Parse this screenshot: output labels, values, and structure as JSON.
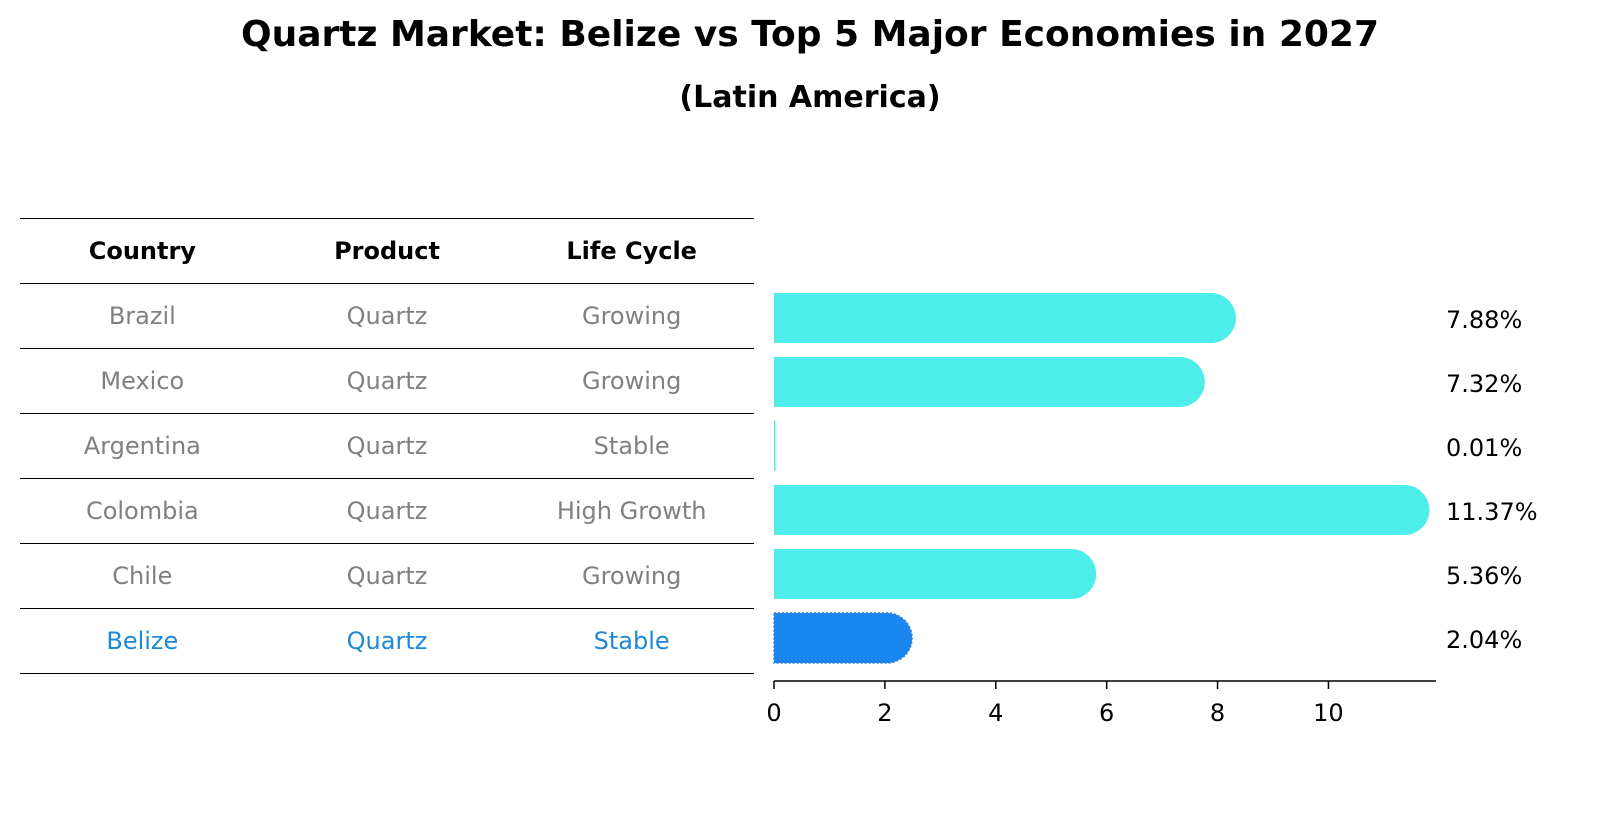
{
  "title": "Quartz Market: Belize vs Top 5 Major Economies in 2027",
  "subtitle": "(Latin America)",
  "table": {
    "headers": [
      "Country",
      "Product",
      "Life Cycle"
    ],
    "rows": [
      {
        "country": "Brazil",
        "product": "Quartz",
        "life_cycle": "Growing"
      },
      {
        "country": "Mexico",
        "product": "Quartz",
        "life_cycle": "Growing"
      },
      {
        "country": "Argentina",
        "product": "Quartz",
        "life_cycle": "Stable"
      },
      {
        "country": "Colombia",
        "product": "Quartz",
        "life_cycle": "High Growth"
      },
      {
        "country": "Chile",
        "product": "Quartz",
        "life_cycle": "Growing"
      },
      {
        "country": "Belize",
        "product": "Quartz",
        "life_cycle": "Stable"
      }
    ]
  },
  "colors": {
    "bar": "#4deeea",
    "highlight": "#1a86f0",
    "highlight_text": "#1e88d8",
    "muted_text": "#808080"
  },
  "chart_data": {
    "type": "bar",
    "orientation": "horizontal",
    "categories": [
      "Brazil",
      "Mexico",
      "Argentina",
      "Colombia",
      "Chile",
      "Belize"
    ],
    "values": [
      7.88,
      7.32,
      0.01,
      11.37,
      5.36,
      2.04
    ],
    "value_labels": [
      "7.88%",
      "7.32%",
      "0.01%",
      "11.37%",
      "5.36%",
      "2.04%"
    ],
    "highlight": "Belize",
    "xlim": [
      0,
      11.94
    ],
    "xticks": [
      0,
      2,
      4,
      6,
      8,
      10
    ],
    "grid": false
  }
}
